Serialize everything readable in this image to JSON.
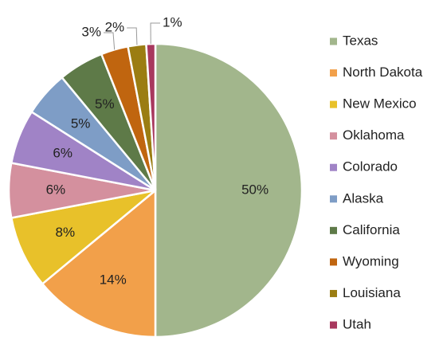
{
  "chart_data": {
    "type": "pie",
    "categories": [
      "Texas",
      "North Dakota",
      "New Mexico",
      "Oklahoma",
      "Colorado",
      "Alaska",
      "California",
      "Wyoming",
      "Louisiana",
      "Utah"
    ],
    "values": [
      50,
      14,
      8,
      6,
      6,
      5,
      5,
      3,
      2,
      1
    ],
    "value_labels": [
      "50%",
      "14%",
      "8%",
      "6%",
      "6%",
      "5%",
      "5%",
      "3%",
      "2%",
      "1%"
    ],
    "colors": [
      "#a2b68c",
      "#f2a04a",
      "#e8c12a",
      "#d4909e",
      "#a083c6",
      "#7e9dc6",
      "#5e7a48",
      "#c0650f",
      "#9b7d12",
      "#a8385e"
    ],
    "legend": "right"
  }
}
